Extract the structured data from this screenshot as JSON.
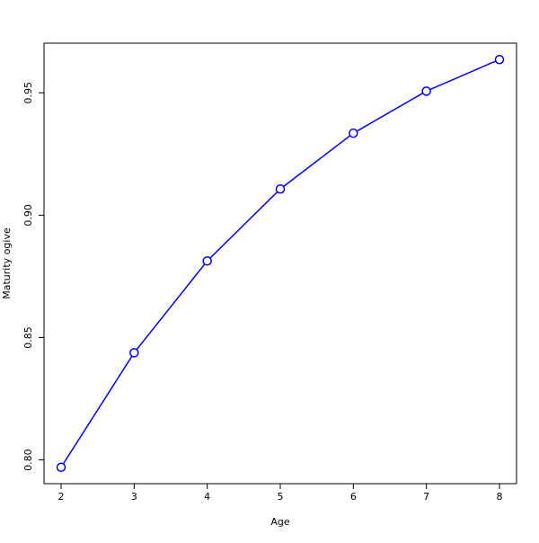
{
  "chart_data": {
    "type": "line",
    "title": "",
    "xlabel": "Age",
    "ylabel": "Maturity ogive",
    "x": [
      2,
      3,
      4,
      5,
      6,
      7,
      8
    ],
    "series": [
      {
        "values": [
          0.797,
          0.8438,
          0.8813,
          0.9107,
          0.9335,
          0.9507,
          0.9636
        ],
        "color": "#0000ff",
        "marker": "open-circle"
      }
    ],
    "xlim": [
      1.766,
      8.234
    ],
    "ylim": [
      0.7903,
      0.9703
    ],
    "xticks": [
      "2",
      "3",
      "4",
      "5",
      "6",
      "7",
      "8"
    ],
    "yticks": [
      "0.80",
      "0.85",
      "0.90",
      "0.95"
    ],
    "grid": false,
    "legend": "none"
  }
}
